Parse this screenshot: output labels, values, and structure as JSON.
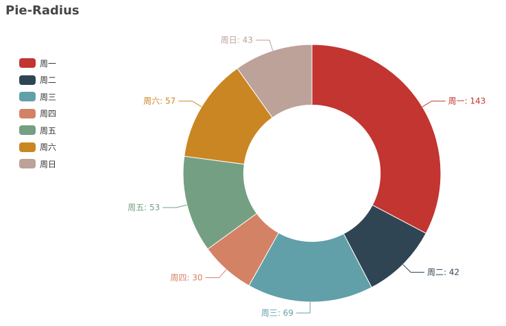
{
  "chart_data": {
    "type": "pie",
    "title": "Pie-Radius",
    "legend_position": "left",
    "inner_radius_ratio": 0.53,
    "categories": [
      "周一",
      "周二",
      "周三",
      "周四",
      "周五",
      "周六",
      "周日"
    ],
    "values": [
      143,
      42,
      69,
      30,
      53,
      57,
      43
    ],
    "colors": [
      "#c23531",
      "#2f4554",
      "#61a0a8",
      "#d48265",
      "#749f83",
      "#ca8622",
      "#bda29a"
    ],
    "labels": [
      "周一: 143",
      "周二: 42",
      "周三: 69",
      "周四: 30",
      "周五: 53",
      "周六: 57",
      "周日: 43"
    ]
  }
}
